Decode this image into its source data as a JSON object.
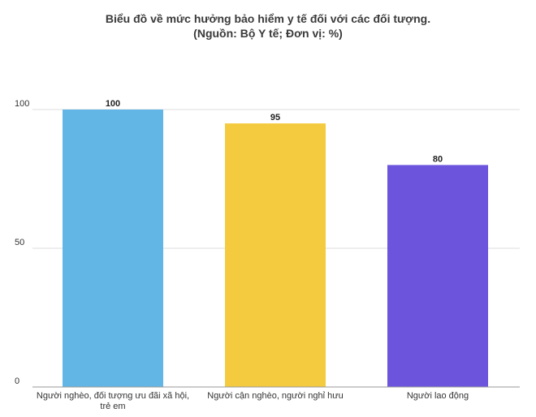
{
  "chart_data": {
    "type": "bar",
    "title": "Biểu đồ về mức hưởng bảo hiểm y tế đối với các đối tượng.",
    "subtitle": "(Nguồn: Bộ Y tế; Đơn vị: %)",
    "categories": [
      "Người nghèo, đối tượng ưu đãi xã hội, trẻ em",
      "Người cận nghèo, người nghỉ hưu",
      "Người lao động"
    ],
    "values": [
      100,
      95,
      80
    ],
    "colors": [
      "#62b6e6",
      "#f4ca3e",
      "#6c55dc"
    ],
    "yticks": [
      "0",
      "50",
      "100"
    ],
    "ylim": [
      0,
      100
    ],
    "grid": true,
    "xlabel": "",
    "ylabel": ""
  }
}
